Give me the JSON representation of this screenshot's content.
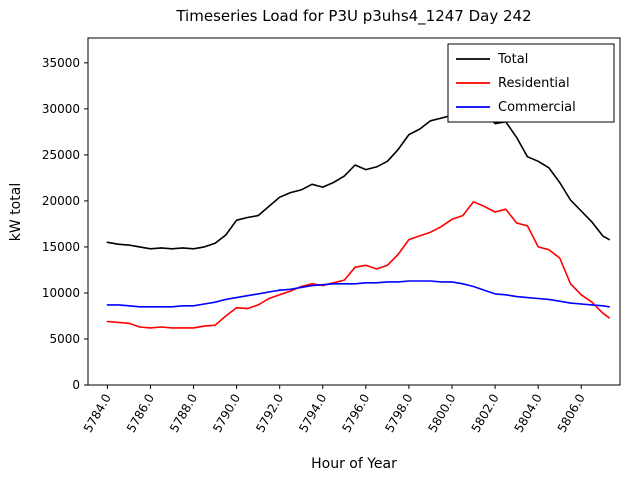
{
  "title": "Timeseries Load for P3U p3uhs4_1247  Day 242",
  "chart_data": {
    "type": "line",
    "title": "Timeseries Load for P3U p3uhs4_1247  Day 242",
    "xlabel": "Hour of Year",
    "ylabel": "kW total",
    "xlim": [
      5783.1,
      5807.8
    ],
    "ylim": [
      0,
      37700
    ],
    "grid": false,
    "legend_position": "upper right",
    "xticks": [
      5784,
      5786,
      5788,
      5790,
      5792,
      5794,
      5796,
      5798,
      5800,
      5802,
      5804,
      5806
    ],
    "xtick_labels": [
      "5784.0",
      "5786.0",
      "5788.0",
      "5790.0",
      "5792.0",
      "5794.0",
      "5796.0",
      "5798.0",
      "5800.0",
      "5802.0",
      "5804.0",
      "5806.0"
    ],
    "yticks": [
      0,
      5000,
      10000,
      15000,
      20000,
      25000,
      30000,
      35000
    ],
    "ytick_labels": [
      "0",
      "5000",
      "10000",
      "15000",
      "20000",
      "25000",
      "30000",
      "35000"
    ],
    "x": [
      5784.0,
      5784.5,
      5785.0,
      5785.5,
      5786.0,
      5786.5,
      5787.0,
      5787.5,
      5788.0,
      5788.5,
      5789.0,
      5789.5,
      5790.0,
      5790.5,
      5791.0,
      5791.5,
      5792.0,
      5792.5,
      5793.0,
      5793.5,
      5794.0,
      5794.5,
      5795.0,
      5795.5,
      5796.0,
      5796.5,
      5797.0,
      5797.5,
      5798.0,
      5798.5,
      5799.0,
      5799.5,
      5800.0,
      5800.5,
      5801.0,
      5801.5,
      5802.0,
      5802.5,
      5803.0,
      5803.5,
      5804.0,
      5804.5,
      5805.0,
      5805.5,
      5806.0,
      5806.5,
      5807.0,
      5807.3
    ],
    "series": [
      {
        "name": "Total",
        "color": "#000000",
        "values": [
          15500,
          15300,
          15200,
          15000,
          14800,
          14900,
          14800,
          14900,
          14800,
          15000,
          15400,
          16300,
          17900,
          18200,
          18400,
          19400,
          20400,
          20900,
          21200,
          21800,
          21500,
          22000,
          22700,
          23900,
          23400,
          23700,
          24300,
          25600,
          27200,
          27800,
          28700,
          29000,
          29300,
          29800,
          30200,
          29600,
          28400,
          28600,
          26900,
          24800,
          24300,
          23600,
          22000,
          20100,
          18900,
          17700,
          16200,
          15800
        ]
      },
      {
        "name": "Residential",
        "color": "#ff0000",
        "values": [
          6900,
          6800,
          6700,
          6300,
          6200,
          6300,
          6200,
          6200,
          6200,
          6400,
          6500,
          7500,
          8400,
          8300,
          8700,
          9400,
          9800,
          10200,
          10700,
          11000,
          10800,
          11100,
          11400,
          12800,
          13000,
          12600,
          13000,
          14200,
          15800,
          16200,
          16600,
          17200,
          18000,
          18400,
          19900,
          19400,
          18800,
          19100,
          17600,
          17300,
          15000,
          14700,
          13800,
          11000,
          9800,
          9000,
          7800,
          7300
        ]
      },
      {
        "name": "Commercial",
        "color": "#0000ff",
        "values": [
          8700,
          8700,
          8600,
          8500,
          8500,
          8500,
          8500,
          8600,
          8600,
          8800,
          9000,
          9300,
          9500,
          9700,
          9900,
          10100,
          10300,
          10400,
          10600,
          10800,
          10900,
          11000,
          11000,
          11000,
          11100,
          11100,
          11200,
          11200,
          11300,
          11300,
          11300,
          11200,
          11200,
          11000,
          10700,
          10300,
          9900,
          9800,
          9600,
          9500,
          9400,
          9300,
          9100,
          8900,
          8800,
          8700,
          8600,
          8500
        ]
      }
    ]
  }
}
